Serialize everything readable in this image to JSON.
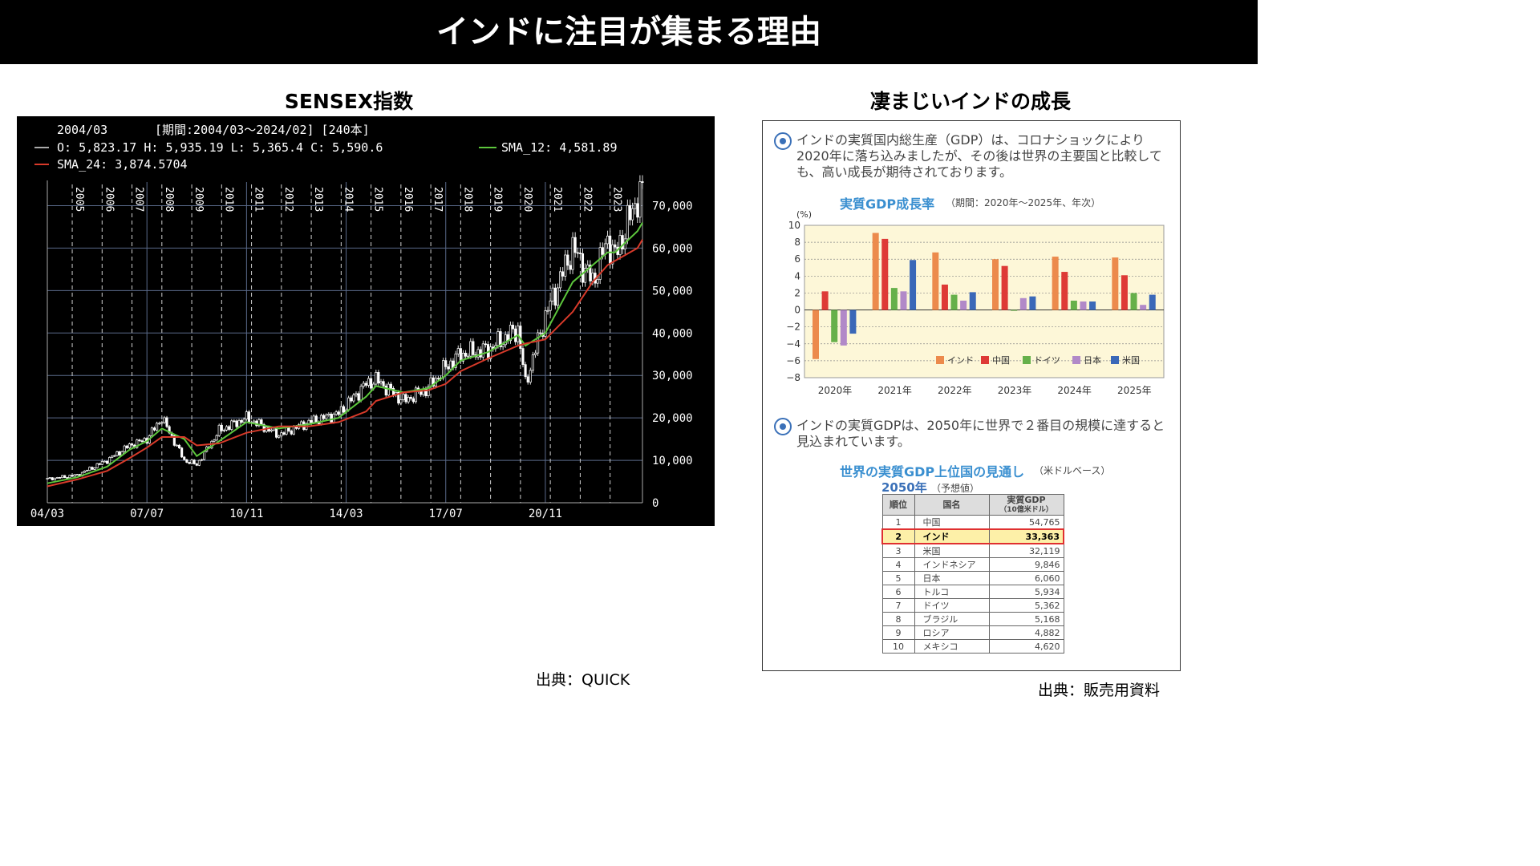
{
  "title": "インドに注目が集まる理由",
  "left": {
    "title": "SENSEX指数",
    "source": "出典：QUICK",
    "info": {
      "date": "2004/03",
      "period": "[期間:2004/03～2024/02] [240本]",
      "ohlc": "O: 5,823.17 H: 5,935.19 L: 5,365.4 C: 5,590.6",
      "sma12": "SMA_12: 4,581.89",
      "sma24": "SMA_24: 3,874.5704"
    }
  },
  "right": {
    "title": "凄まじいインドの成長",
    "source": "出典：販売用資料",
    "text1": "インドの実質国内総生産（GDP）は、コロナショックにより2020年に落ち込みましたが、その後は世界の主要国と比較しても、高い成長が期待されております。",
    "text2": "インドの実質GDPは、2050年に世界で２番目の規模に達すると見込まれています。",
    "gdp_chart_title": "実質GDP成長率",
    "gdp_chart_period": "（期間：2020年～2025年、年次）",
    "rank_title": "世界の実質GDP上位国の見通し",
    "rank_unit": "（米ドルベース）",
    "rank_year": "2050年",
    "rank_year_note": "（予想値）",
    "rank_headers": [
      "順位",
      "国名",
      "実質GDP",
      "（10億米ドル）"
    ],
    "rank_rows": [
      {
        "rank": "1",
        "country": "中国",
        "gdp": "54,765"
      },
      {
        "rank": "2",
        "country": "インド",
        "gdp": "33,363"
      },
      {
        "rank": "3",
        "country": "米国",
        "gdp": "32,119"
      },
      {
        "rank": "4",
        "country": "インドネシア",
        "gdp": "9,846"
      },
      {
        "rank": "5",
        "country": "日本",
        "gdp": "6,060"
      },
      {
        "rank": "6",
        "country": "トルコ",
        "gdp": "5,934"
      },
      {
        "rank": "7",
        "country": "ドイツ",
        "gdp": "5,362"
      },
      {
        "rank": "8",
        "country": "ブラジル",
        "gdp": "5,168"
      },
      {
        "rank": "9",
        "country": "ロシア",
        "gdp": "4,882"
      },
      {
        "rank": "10",
        "country": "メキシコ",
        "gdp": "4,620"
      }
    ]
  },
  "chart_data": [
    {
      "type": "line",
      "title": "SENSEX指数",
      "x": [
        "2004-03",
        "2005-03",
        "2006-03",
        "2006-12",
        "2007-07",
        "2008-01",
        "2008-10",
        "2009-03",
        "2009-12",
        "2010-11",
        "2011-12",
        "2012-12",
        "2013-12",
        "2014-11",
        "2015-03",
        "2016-02",
        "2016-12",
        "2017-07",
        "2018-01",
        "2018-12",
        "2019-12",
        "2020-03",
        "2020-11",
        "2021-10",
        "2022-06",
        "2022-12",
        "2023-03",
        "2023-12",
        "2024-02"
      ],
      "series": [
        {
          "name": "",
          "values": [
            5591,
            6500,
            10000,
            13500,
            15000,
            20000,
            10000,
            9000,
            17000,
            20000,
            16000,
            19000,
            21000,
            28000,
            29000,
            24000,
            27000,
            32000,
            35000,
            36000,
            41000,
            28000,
            44000,
            60000,
            52000,
            62000,
            58000,
            72000,
            73000
          ]
        },
        {
          "name": "SMA_12",
          "values": [
            4582,
            6000,
            8500,
            12500,
            14500,
            17500,
            15000,
            11000,
            14500,
            19000,
            17500,
            18500,
            20000,
            25000,
            27500,
            26000,
            27000,
            30000,
            33500,
            35500,
            39500,
            37000,
            40000,
            52000,
            56000,
            59000,
            59000,
            64000,
            66000
          ]
        },
        {
          "name": "SMA_24",
          "values": [
            3875,
            5500,
            7500,
            10500,
            13000,
            15500,
            15500,
            13500,
            14000,
            16500,
            18000,
            18000,
            19000,
            21500,
            24000,
            26000,
            26500,
            28000,
            31000,
            34000,
            37000,
            37500,
            38500,
            45000,
            52000,
            56000,
            57000,
            60000,
            62000
          ]
        }
      ],
      "year_lines": [
        "2005",
        "2006",
        "2007",
        "2008",
        "2009",
        "2010",
        "2011",
        "2012",
        "2013",
        "2014",
        "2015",
        "2016",
        "2017",
        "2018",
        "2019",
        "2020",
        "2021",
        "2022",
        "2023"
      ],
      "x_ticks": [
        "04/03",
        "07/07",
        "10/11",
        "14/03",
        "17/07",
        "20/11"
      ],
      "y_ticks": [
        "0",
        "10,000",
        "20,000",
        "30,000",
        "40,000",
        "50,000",
        "60,000",
        "70,000"
      ],
      "ylim": [
        0,
        75000
      ],
      "grid": true,
      "colors": {
        "price": "#ffffff",
        "SMA_12": "#5cc63c",
        "SMA_24": "#d83a2a",
        "background": "#000000"
      }
    },
    {
      "type": "bar",
      "title": "実質GDP成長率",
      "categories": [
        "2020年",
        "2021年",
        "2022年",
        "2023年",
        "2024年",
        "2025年"
      ],
      "series": [
        {
          "name": "インド",
          "values": [
            -5.8,
            9.1,
            6.8,
            6.0,
            6.3,
            6.2
          ]
        },
        {
          "name": "中国",
          "values": [
            2.2,
            8.4,
            3.0,
            5.2,
            4.5,
            4.1
          ]
        },
        {
          "name": "ドイツ",
          "values": [
            -3.8,
            2.6,
            1.8,
            -0.1,
            1.1,
            2.0
          ]
        },
        {
          "name": "日本",
          "values": [
            -4.2,
            2.2,
            1.1,
            1.4,
            1.0,
            0.6
          ]
        },
        {
          "name": "米国",
          "values": [
            -2.8,
            5.9,
            2.1,
            1.6,
            1.0,
            1.8
          ]
        }
      ],
      "ylabel": "(%)",
      "ylim": [
        -8,
        10
      ],
      "y_ticks": [
        "10",
        "8",
        "6",
        "4",
        "2",
        "0",
        "−2",
        "−4",
        "−6",
        "−8"
      ],
      "colors": {
        "インド": "#ec8a4c",
        "中国": "#de3a36",
        "ドイツ": "#66b04a",
        "日本": "#b189c8",
        "米国": "#3a68b8"
      }
    }
  ]
}
